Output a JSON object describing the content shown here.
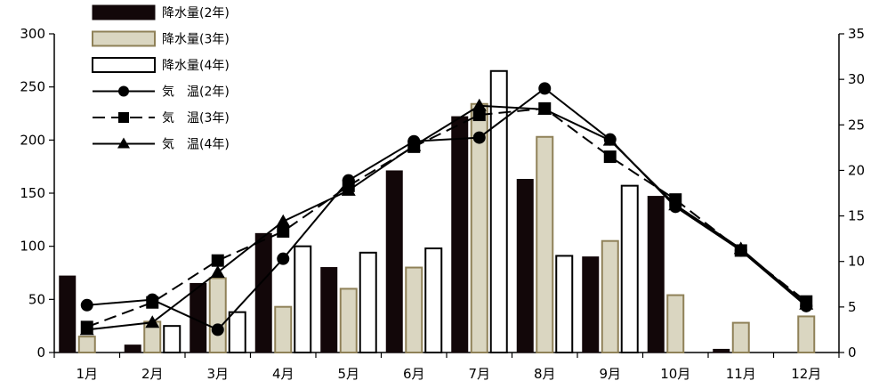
{
  "chart_data": {
    "type": "bar+line",
    "categories": [
      "1月",
      "2月",
      "3月",
      "4月",
      "5月",
      "6月",
      "7月",
      "8月",
      "9月",
      "10月",
      "11月",
      "12月"
    ],
    "bar_series": [
      {
        "name": "降水量(2年)",
        "values": [
          72,
          7,
          65,
          112,
          80,
          171,
          222,
          163,
          90,
          147,
          3,
          0
        ],
        "fill": "#120709",
        "stroke": "#120709"
      },
      {
        "name": "降水量(3年)",
        "values": [
          15,
          29,
          70,
          43,
          60,
          80,
          234,
          203,
          105,
          54,
          28,
          34
        ],
        "fill": "#dad6c1",
        "stroke": "#8f8158"
      },
      {
        "name": "降水量(4年)",
        "values": [
          0,
          25,
          38,
          100,
          94,
          98,
          265,
          91,
          157,
          0,
          0,
          0
        ],
        "fill": "#ffffff",
        "stroke": "#000000"
      }
    ],
    "line_series": [
      {
        "name": "気　温(2年)",
        "values": [
          5.2,
          5.8,
          2.5,
          10.3,
          18.9,
          23.2,
          23.6,
          29.0,
          23.4,
          16.0,
          11.2,
          5.1
        ],
        "marker": "circle",
        "dash": "solid"
      },
      {
        "name": "気　温(3年)",
        "values": [
          2.8,
          5.5,
          10.1,
          13.3,
          18.3,
          22.6,
          26.1,
          26.8,
          21.5,
          16.8,
          11.2,
          5.6
        ],
        "marker": "square",
        "dash": "dashed"
      },
      {
        "name": "気　温(4年)",
        "values": [
          2.5,
          3.3,
          8.8,
          14.4,
          17.8,
          22.7,
          27.1,
          26.7,
          23.3,
          16.2,
          11.4,
          5.3
        ],
        "marker": "triangle",
        "dash": "solid"
      }
    ],
    "y_left": {
      "min": 0,
      "max": 300,
      "step": 50,
      "ticks": [
        "0",
        "50",
        "100",
        "150",
        "200",
        "250",
        "300"
      ]
    },
    "y_right": {
      "min": 0,
      "max": 35,
      "step": 5,
      "ticks": [
        "0",
        "5",
        "10",
        "15",
        "20",
        "25",
        "30",
        "35"
      ]
    },
    "legend_position": "top-left",
    "grid": false
  }
}
